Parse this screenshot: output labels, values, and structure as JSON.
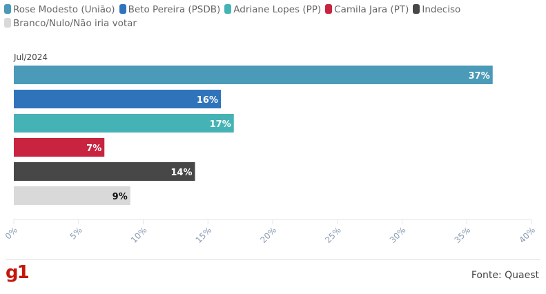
{
  "chart_data": {
    "type": "bar",
    "orientation": "horizontal",
    "period": "Jul/2024",
    "categories": [
      "Rose Modesto (União)",
      "Beto Pereira (PSDB)",
      "Adriane Lopes (PP)",
      "Camila Jara (PT)",
      "Indeciso",
      "Branco/Nulo/Não iria votar"
    ],
    "values": [
      37,
      16,
      17,
      7,
      14,
      9
    ],
    "labels": [
      "37%",
      "16%",
      "17%",
      "7%",
      "14%",
      "9%"
    ],
    "colors": [
      "#4a9ab8",
      "#2f74bb",
      "#45b3b5",
      "#c8243f",
      "#474747",
      "#d9d9d9"
    ],
    "label_colors": [
      "#fff",
      "#fff",
      "#fff",
      "#fff",
      "#fff",
      "#111"
    ],
    "xlim": [
      0,
      40
    ],
    "xticks": [
      "0%",
      "5%",
      "10%",
      "15%",
      "20%",
      "25%",
      "30%",
      "35%",
      "40%"
    ],
    "legend_placement": "top-left"
  },
  "footer": {
    "source": "Fonte: Quaest",
    "logo": "g1"
  }
}
